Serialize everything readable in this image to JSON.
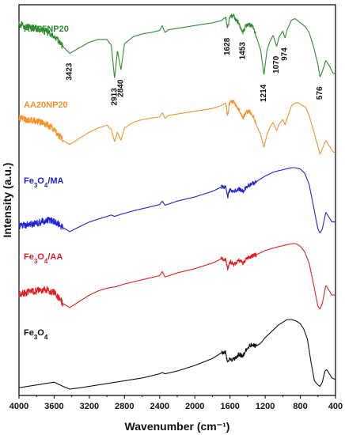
{
  "chart_data": {
    "type": "line",
    "xlabel": "Wavenumber (cm⁻¹)",
    "ylabel": "Intensity (a.u.)",
    "xlim": [
      4000,
      400
    ],
    "x_reversed": true,
    "x_ticks": [
      4000,
      3600,
      3200,
      2800,
      2400,
      2000,
      1600,
      1200,
      800,
      400
    ],
    "y_ticks_shown": false,
    "grid": false,
    "series": [
      {
        "name": "AM25NP20",
        "label_parts": [
          {
            "t": "AM25NP20",
            "sub": false
          }
        ],
        "color": "#2e8b2e",
        "offset": 4,
        "noise_below": 1650,
        "noise_above": 3500,
        "points": [
          [
            4000,
            0.88
          ],
          [
            3900,
            0.84
          ],
          [
            3800,
            0.82
          ],
          [
            3700,
            0.78
          ],
          [
            3600,
            0.72
          ],
          [
            3500,
            0.56
          ],
          [
            3423,
            0.46
          ],
          [
            3300,
            0.55
          ],
          [
            3200,
            0.62
          ],
          [
            3100,
            0.66
          ],
          [
            3000,
            0.66
          ],
          [
            2950,
            0.58
          ],
          [
            2913,
            0.1
          ],
          [
            2880,
            0.5
          ],
          [
            2840,
            0.22
          ],
          [
            2800,
            0.6
          ],
          [
            2700,
            0.7
          ],
          [
            2600,
            0.74
          ],
          [
            2500,
            0.76
          ],
          [
            2400,
            0.79
          ],
          [
            2370,
            0.86
          ],
          [
            2340,
            0.76
          ],
          [
            2300,
            0.8
          ],
          [
            2200,
            0.82
          ],
          [
            2100,
            0.84
          ],
          [
            2000,
            0.86
          ],
          [
            1900,
            0.88
          ],
          [
            1800,
            0.9
          ],
          [
            1700,
            0.93
          ],
          [
            1650,
            0.98
          ],
          [
            1628,
            0.82
          ],
          [
            1600,
            1.0
          ],
          [
            1560,
            1.0
          ],
          [
            1530,
            0.94
          ],
          [
            1500,
            0.9
          ],
          [
            1453,
            0.76
          ],
          [
            1420,
            0.86
          ],
          [
            1380,
            0.88
          ],
          [
            1340,
            0.84
          ],
          [
            1300,
            0.7
          ],
          [
            1250,
            0.5
          ],
          [
            1214,
            0.15
          ],
          [
            1180,
            0.5
          ],
          [
            1150,
            0.62
          ],
          [
            1110,
            0.72
          ],
          [
            1070,
            0.56
          ],
          [
            1040,
            0.7
          ],
          [
            1000,
            0.78
          ],
          [
            974,
            0.68
          ],
          [
            950,
            0.8
          ],
          [
            900,
            0.94
          ],
          [
            860,
            0.96
          ],
          [
            820,
            0.92
          ],
          [
            780,
            0.88
          ],
          [
            740,
            0.84
          ],
          [
            700,
            0.76
          ],
          [
            650,
            0.56
          ],
          [
            600,
            0.3
          ],
          [
            576,
            0.12
          ],
          [
            550,
            0.2
          ],
          [
            510,
            0.36
          ],
          [
            470,
            0.28
          ],
          [
            430,
            0.18
          ],
          [
            400,
            0.16
          ]
        ]
      },
      {
        "name": "AA20NP20",
        "label_parts": [
          {
            "t": "AA20NP20",
            "sub": false
          }
        ],
        "color": "#f5922a",
        "offset": 3,
        "noise_below": 1650,
        "noise_above": 3500,
        "points": [
          [
            4000,
            0.62
          ],
          [
            3900,
            0.6
          ],
          [
            3800,
            0.58
          ],
          [
            3700,
            0.54
          ],
          [
            3600,
            0.46
          ],
          [
            3500,
            0.3
          ],
          [
            3423,
            0.24
          ],
          [
            3300,
            0.34
          ],
          [
            3200,
            0.42
          ],
          [
            3100,
            0.48
          ],
          [
            3000,
            0.52
          ],
          [
            2950,
            0.46
          ],
          [
            2913,
            0.28
          ],
          [
            2880,
            0.42
          ],
          [
            2840,
            0.3
          ],
          [
            2800,
            0.48
          ],
          [
            2700,
            0.56
          ],
          [
            2600,
            0.6
          ],
          [
            2500,
            0.62
          ],
          [
            2400,
            0.64
          ],
          [
            2370,
            0.7
          ],
          [
            2340,
            0.62
          ],
          [
            2300,
            0.66
          ],
          [
            2200,
            0.68
          ],
          [
            2100,
            0.7
          ],
          [
            2000,
            0.72
          ],
          [
            1900,
            0.74
          ],
          [
            1800,
            0.76
          ],
          [
            1700,
            0.8
          ],
          [
            1650,
            0.84
          ],
          [
            1628,
            0.66
          ],
          [
            1600,
            0.86
          ],
          [
            1560,
            0.86
          ],
          [
            1530,
            0.78
          ],
          [
            1500,
            0.74
          ],
          [
            1453,
            0.62
          ],
          [
            1420,
            0.7
          ],
          [
            1380,
            0.72
          ],
          [
            1340,
            0.66
          ],
          [
            1300,
            0.52
          ],
          [
            1250,
            0.38
          ],
          [
            1214,
            0.2
          ],
          [
            1180,
            0.38
          ],
          [
            1150,
            0.48
          ],
          [
            1110,
            0.56
          ],
          [
            1070,
            0.44
          ],
          [
            1040,
            0.54
          ],
          [
            1000,
            0.6
          ],
          [
            974,
            0.52
          ],
          [
            950,
            0.62
          ],
          [
            900,
            0.8
          ],
          [
            860,
            0.84
          ],
          [
            820,
            0.84
          ],
          [
            780,
            0.8
          ],
          [
            740,
            0.78
          ],
          [
            700,
            0.66
          ],
          [
            650,
            0.44
          ],
          [
            600,
            0.22
          ],
          [
            576,
            0.1
          ],
          [
            550,
            0.18
          ],
          [
            510,
            0.3
          ],
          [
            470,
            0.22
          ],
          [
            430,
            0.14
          ],
          [
            400,
            0.12
          ]
        ]
      },
      {
        "name": "Fe3O4/MA",
        "label_parts": [
          {
            "t": "Fe",
            "sub": false
          },
          {
            "t": "3",
            "sub": true
          },
          {
            "t": "O",
            "sub": false
          },
          {
            "t": "4",
            "sub": true
          },
          {
            "t": "/MA",
            "sub": false
          }
        ],
        "color": "#1f22d6",
        "offset": 2,
        "noise_below": 1700,
        "noise_above": 3500,
        "points": [
          [
            4000,
            0.16
          ],
          [
            3900,
            0.18
          ],
          [
            3800,
            0.2
          ],
          [
            3700,
            0.24
          ],
          [
            3600,
            0.24
          ],
          [
            3500,
            0.14
          ],
          [
            3423,
            0.08
          ],
          [
            3300,
            0.16
          ],
          [
            3200,
            0.22
          ],
          [
            3100,
            0.26
          ],
          [
            3000,
            0.3
          ],
          [
            2950,
            0.32
          ],
          [
            2913,
            0.3
          ],
          [
            2840,
            0.33
          ],
          [
            2700,
            0.38
          ],
          [
            2500,
            0.44
          ],
          [
            2400,
            0.47
          ],
          [
            2370,
            0.52
          ],
          [
            2340,
            0.46
          ],
          [
            2200,
            0.52
          ],
          [
            2000,
            0.58
          ],
          [
            1800,
            0.66
          ],
          [
            1700,
            0.72
          ],
          [
            1650,
            0.72
          ],
          [
            1628,
            0.58
          ],
          [
            1600,
            0.68
          ],
          [
            1560,
            0.66
          ],
          [
            1500,
            0.7
          ],
          [
            1453,
            0.66
          ],
          [
            1400,
            0.74
          ],
          [
            1300,
            0.8
          ],
          [
            1200,
            0.88
          ],
          [
            1100,
            0.94
          ],
          [
            1000,
            0.97
          ],
          [
            900,
            1.0
          ],
          [
            860,
            1.0
          ],
          [
            800,
            0.98
          ],
          [
            750,
            0.92
          ],
          [
            700,
            0.76
          ],
          [
            650,
            0.44
          ],
          [
            600,
            0.12
          ],
          [
            576,
            0.06
          ],
          [
            550,
            0.12
          ],
          [
            510,
            0.36
          ],
          [
            480,
            0.3
          ],
          [
            440,
            0.22
          ],
          [
            400,
            0.22
          ]
        ]
      },
      {
        "name": "Fe3O4/AA",
        "label_parts": [
          {
            "t": "Fe",
            "sub": false
          },
          {
            "t": "3",
            "sub": true
          },
          {
            "t": "O",
            "sub": false
          },
          {
            "t": "4",
            "sub": true
          },
          {
            "t": "/AA",
            "sub": false
          }
        ],
        "color": "#e02020",
        "offset": 1,
        "noise_below": 1700,
        "noise_above": 3500,
        "points": [
          [
            4000,
            0.28
          ],
          [
            3900,
            0.3
          ],
          [
            3800,
            0.32
          ],
          [
            3700,
            0.34
          ],
          [
            3600,
            0.3
          ],
          [
            3500,
            0.14
          ],
          [
            3423,
            0.08
          ],
          [
            3300,
            0.18
          ],
          [
            3200,
            0.26
          ],
          [
            3100,
            0.32
          ],
          [
            3000,
            0.36
          ],
          [
            2900,
            0.38
          ],
          [
            2800,
            0.42
          ],
          [
            2600,
            0.48
          ],
          [
            2400,
            0.54
          ],
          [
            2370,
            0.6
          ],
          [
            2340,
            0.52
          ],
          [
            2200,
            0.58
          ],
          [
            2000,
            0.64
          ],
          [
            1800,
            0.72
          ],
          [
            1700,
            0.78
          ],
          [
            1650,
            0.78
          ],
          [
            1628,
            0.64
          ],
          [
            1600,
            0.74
          ],
          [
            1560,
            0.7
          ],
          [
            1500,
            0.76
          ],
          [
            1453,
            0.72
          ],
          [
            1400,
            0.8
          ],
          [
            1300,
            0.84
          ],
          [
            1200,
            0.9
          ],
          [
            1100,
            0.94
          ],
          [
            1000,
            0.97
          ],
          [
            900,
            1.0
          ],
          [
            850,
            1.0
          ],
          [
            800,
            0.96
          ],
          [
            750,
            0.88
          ],
          [
            700,
            0.72
          ],
          [
            650,
            0.42
          ],
          [
            600,
            0.1
          ],
          [
            576,
            0.06
          ],
          [
            550,
            0.14
          ],
          [
            510,
            0.4
          ],
          [
            480,
            0.34
          ],
          [
            440,
            0.26
          ],
          [
            400,
            0.26
          ]
        ]
      },
      {
        "name": "Fe3O4",
        "label_parts": [
          {
            "t": "Fe",
            "sub": false
          },
          {
            "t": "3",
            "sub": true
          },
          {
            "t": "O",
            "sub": false
          },
          {
            "t": "4",
            "sub": true
          }
        ],
        "color": "#111111",
        "offset": 0,
        "noise_below": 1700,
        "noise_above": 4000,
        "points": [
          [
            4000,
            0.02
          ],
          [
            3900,
            0.04
          ],
          [
            3800,
            0.06
          ],
          [
            3700,
            0.08
          ],
          [
            3600,
            0.1
          ],
          [
            3500,
            0.04
          ],
          [
            3423,
            0.0
          ],
          [
            3300,
            0.02
          ],
          [
            3200,
            0.04
          ],
          [
            3000,
            0.08
          ],
          [
            2800,
            0.12
          ],
          [
            2600,
            0.16
          ],
          [
            2400,
            0.22
          ],
          [
            2370,
            0.24
          ],
          [
            2340,
            0.22
          ],
          [
            2200,
            0.26
          ],
          [
            2000,
            0.34
          ],
          [
            1800,
            0.44
          ],
          [
            1700,
            0.52
          ],
          [
            1650,
            0.54
          ],
          [
            1628,
            0.36
          ],
          [
            1600,
            0.44
          ],
          [
            1560,
            0.42
          ],
          [
            1500,
            0.5
          ],
          [
            1453,
            0.48
          ],
          [
            1400,
            0.6
          ],
          [
            1350,
            0.64
          ],
          [
            1300,
            0.62
          ],
          [
            1250,
            0.66
          ],
          [
            1200,
            0.74
          ],
          [
            1150,
            0.8
          ],
          [
            1100,
            0.86
          ],
          [
            1050,
            0.92
          ],
          [
            1000,
            0.96
          ],
          [
            950,
            1.0
          ],
          [
            900,
            1.0
          ],
          [
            850,
            0.98
          ],
          [
            800,
            0.94
          ],
          [
            760,
            0.86
          ],
          [
            720,
            0.72
          ],
          [
            680,
            0.4
          ],
          [
            640,
            0.12
          ],
          [
            600,
            0.06
          ],
          [
            576,
            0.04
          ],
          [
            550,
            0.1
          ],
          [
            520,
            0.26
          ],
          [
            500,
            0.28
          ],
          [
            470,
            0.22
          ],
          [
            440,
            0.16
          ],
          [
            400,
            0.14
          ]
        ]
      }
    ],
    "peak_labels": [
      {
        "text": "3423",
        "x": 3423,
        "series": 0
      },
      {
        "text": "2913",
        "x": 2913,
        "series": 0
      },
      {
        "text": "2840",
        "x": 2840,
        "series": 0
      },
      {
        "text": "1628",
        "x": 1628,
        "series": 0
      },
      {
        "text": "1453",
        "x": 1453,
        "series": 0
      },
      {
        "text": "1214",
        "x": 1214,
        "series": 0
      },
      {
        "text": "1070",
        "x": 1070,
        "series": 0
      },
      {
        "text": "974",
        "x": 974,
        "series": 0
      },
      {
        "text": "576",
        "x": 576,
        "series": 0
      }
    ]
  }
}
